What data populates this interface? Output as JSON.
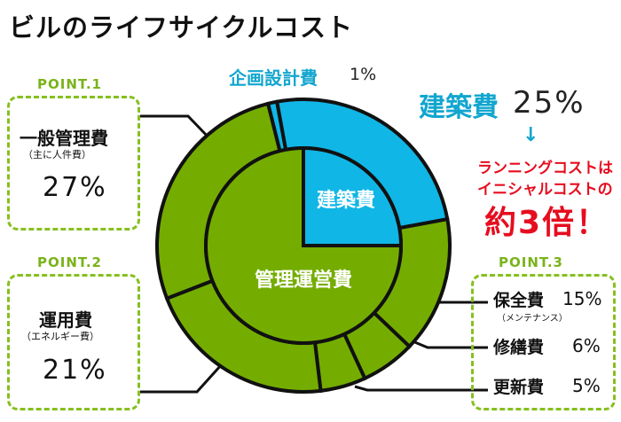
{
  "title": "ビルのライフサイクルコスト",
  "colors": {
    "green": "#74ad00",
    "blue": "#10b6e6",
    "outline": "#111111",
    "accent_blue": "#12a6cf",
    "red": "#e60d1f"
  },
  "point1": {
    "label": "POINT.1",
    "name": "一般管理費",
    "sub": "（主に人件費）",
    "pct": "27%"
  },
  "point2": {
    "label": "POINT.2",
    "name": "運用費",
    "sub": "（エネルギー費）",
    "pct": "21%"
  },
  "point3": {
    "label": "POINT.3",
    "items": [
      {
        "name": "保全費",
        "sub": "（メンテナンス）",
        "pct": "15%"
      },
      {
        "name": "修繕費",
        "pct": "6%"
      },
      {
        "name": "更新費",
        "pct": "5%"
      }
    ]
  },
  "top_item": {
    "name": "企画設計費",
    "pct": "1%"
  },
  "construction": {
    "name": "建築費",
    "pct": "25%"
  },
  "callout": {
    "line1": "ランニングコストは",
    "line2": "イニシャルコストの",
    "line3": "約3倍！"
  },
  "chart_data": {
    "type": "pie",
    "inner": [
      {
        "name": "建築費",
        "value": 25
      },
      {
        "name": "管理運営費",
        "value": 75
      }
    ],
    "outer": [
      {
        "name": "企画設計費",
        "value": 1
      },
      {
        "name": "建築費",
        "value": 25
      },
      {
        "name": "保全費",
        "value": 15
      },
      {
        "name": "修繕費",
        "value": 6
      },
      {
        "name": "更新費",
        "value": 5
      },
      {
        "name": "運用費",
        "value": 21
      },
      {
        "name": "一般管理費",
        "value": 27
      }
    ],
    "inner_labels": [
      "建築費",
      "管理運営費"
    ]
  }
}
